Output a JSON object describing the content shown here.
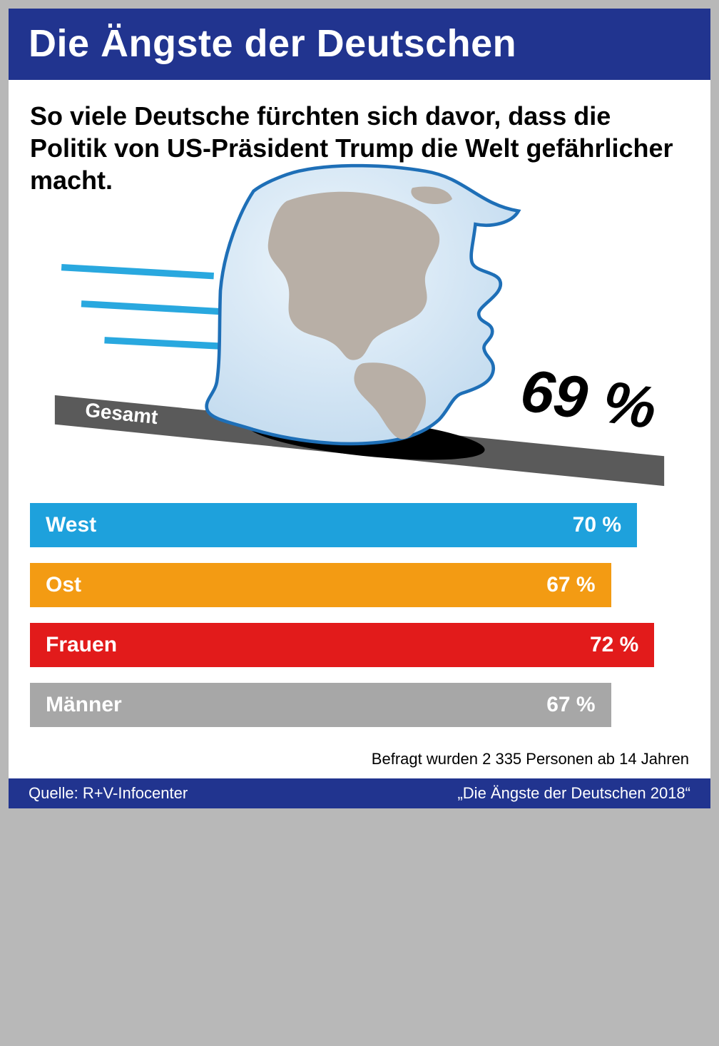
{
  "header": {
    "title": "Die Ängste der Deutschen"
  },
  "subtitle": "So viele Deutsche fürchten sich davor, dass die Politik von US-Präsident Trump die Welt gefährlicher macht.",
  "illustration": {
    "silhouette_fill": "#d3e4f2",
    "silhouette_stroke": "#1e6fb7",
    "continent_fill": "#b8afa6",
    "motion_line_color": "#29a8df",
    "ramp_fill": "#5a5a5a",
    "shadow_fill": "#000000",
    "gesamt_label": "Gesamt",
    "gesamt_label_color": "#ffffff",
    "big_value": "69 %",
    "big_value_color": "#000000",
    "big_value_fontsize": 80
  },
  "bars": {
    "max_pct": 76,
    "items": [
      {
        "label": "West",
        "value": "70 %",
        "pct": 70,
        "color": "#1ea1dc"
      },
      {
        "label": "Ost",
        "value": "67 %",
        "pct": 67,
        "color": "#f39b13"
      },
      {
        "label": "Frauen",
        "value": "72 %",
        "pct": 72,
        "color": "#e21b1b"
      },
      {
        "label": "Männer",
        "value": "67 %",
        "pct": 67,
        "color": "#a7a7a7"
      }
    ]
  },
  "footnote": "Befragt wurden 2 335 Personen ab 14 Jahren",
  "footer": {
    "source": "Quelle: R+V-Infocenter",
    "study": "„Die Ängste der Deutschen 2018“"
  },
  "colors": {
    "page_bg": "#b8b8b8",
    "card_bg": "#ffffff",
    "header_bg": "#21348f",
    "header_text": "#ffffff"
  }
}
